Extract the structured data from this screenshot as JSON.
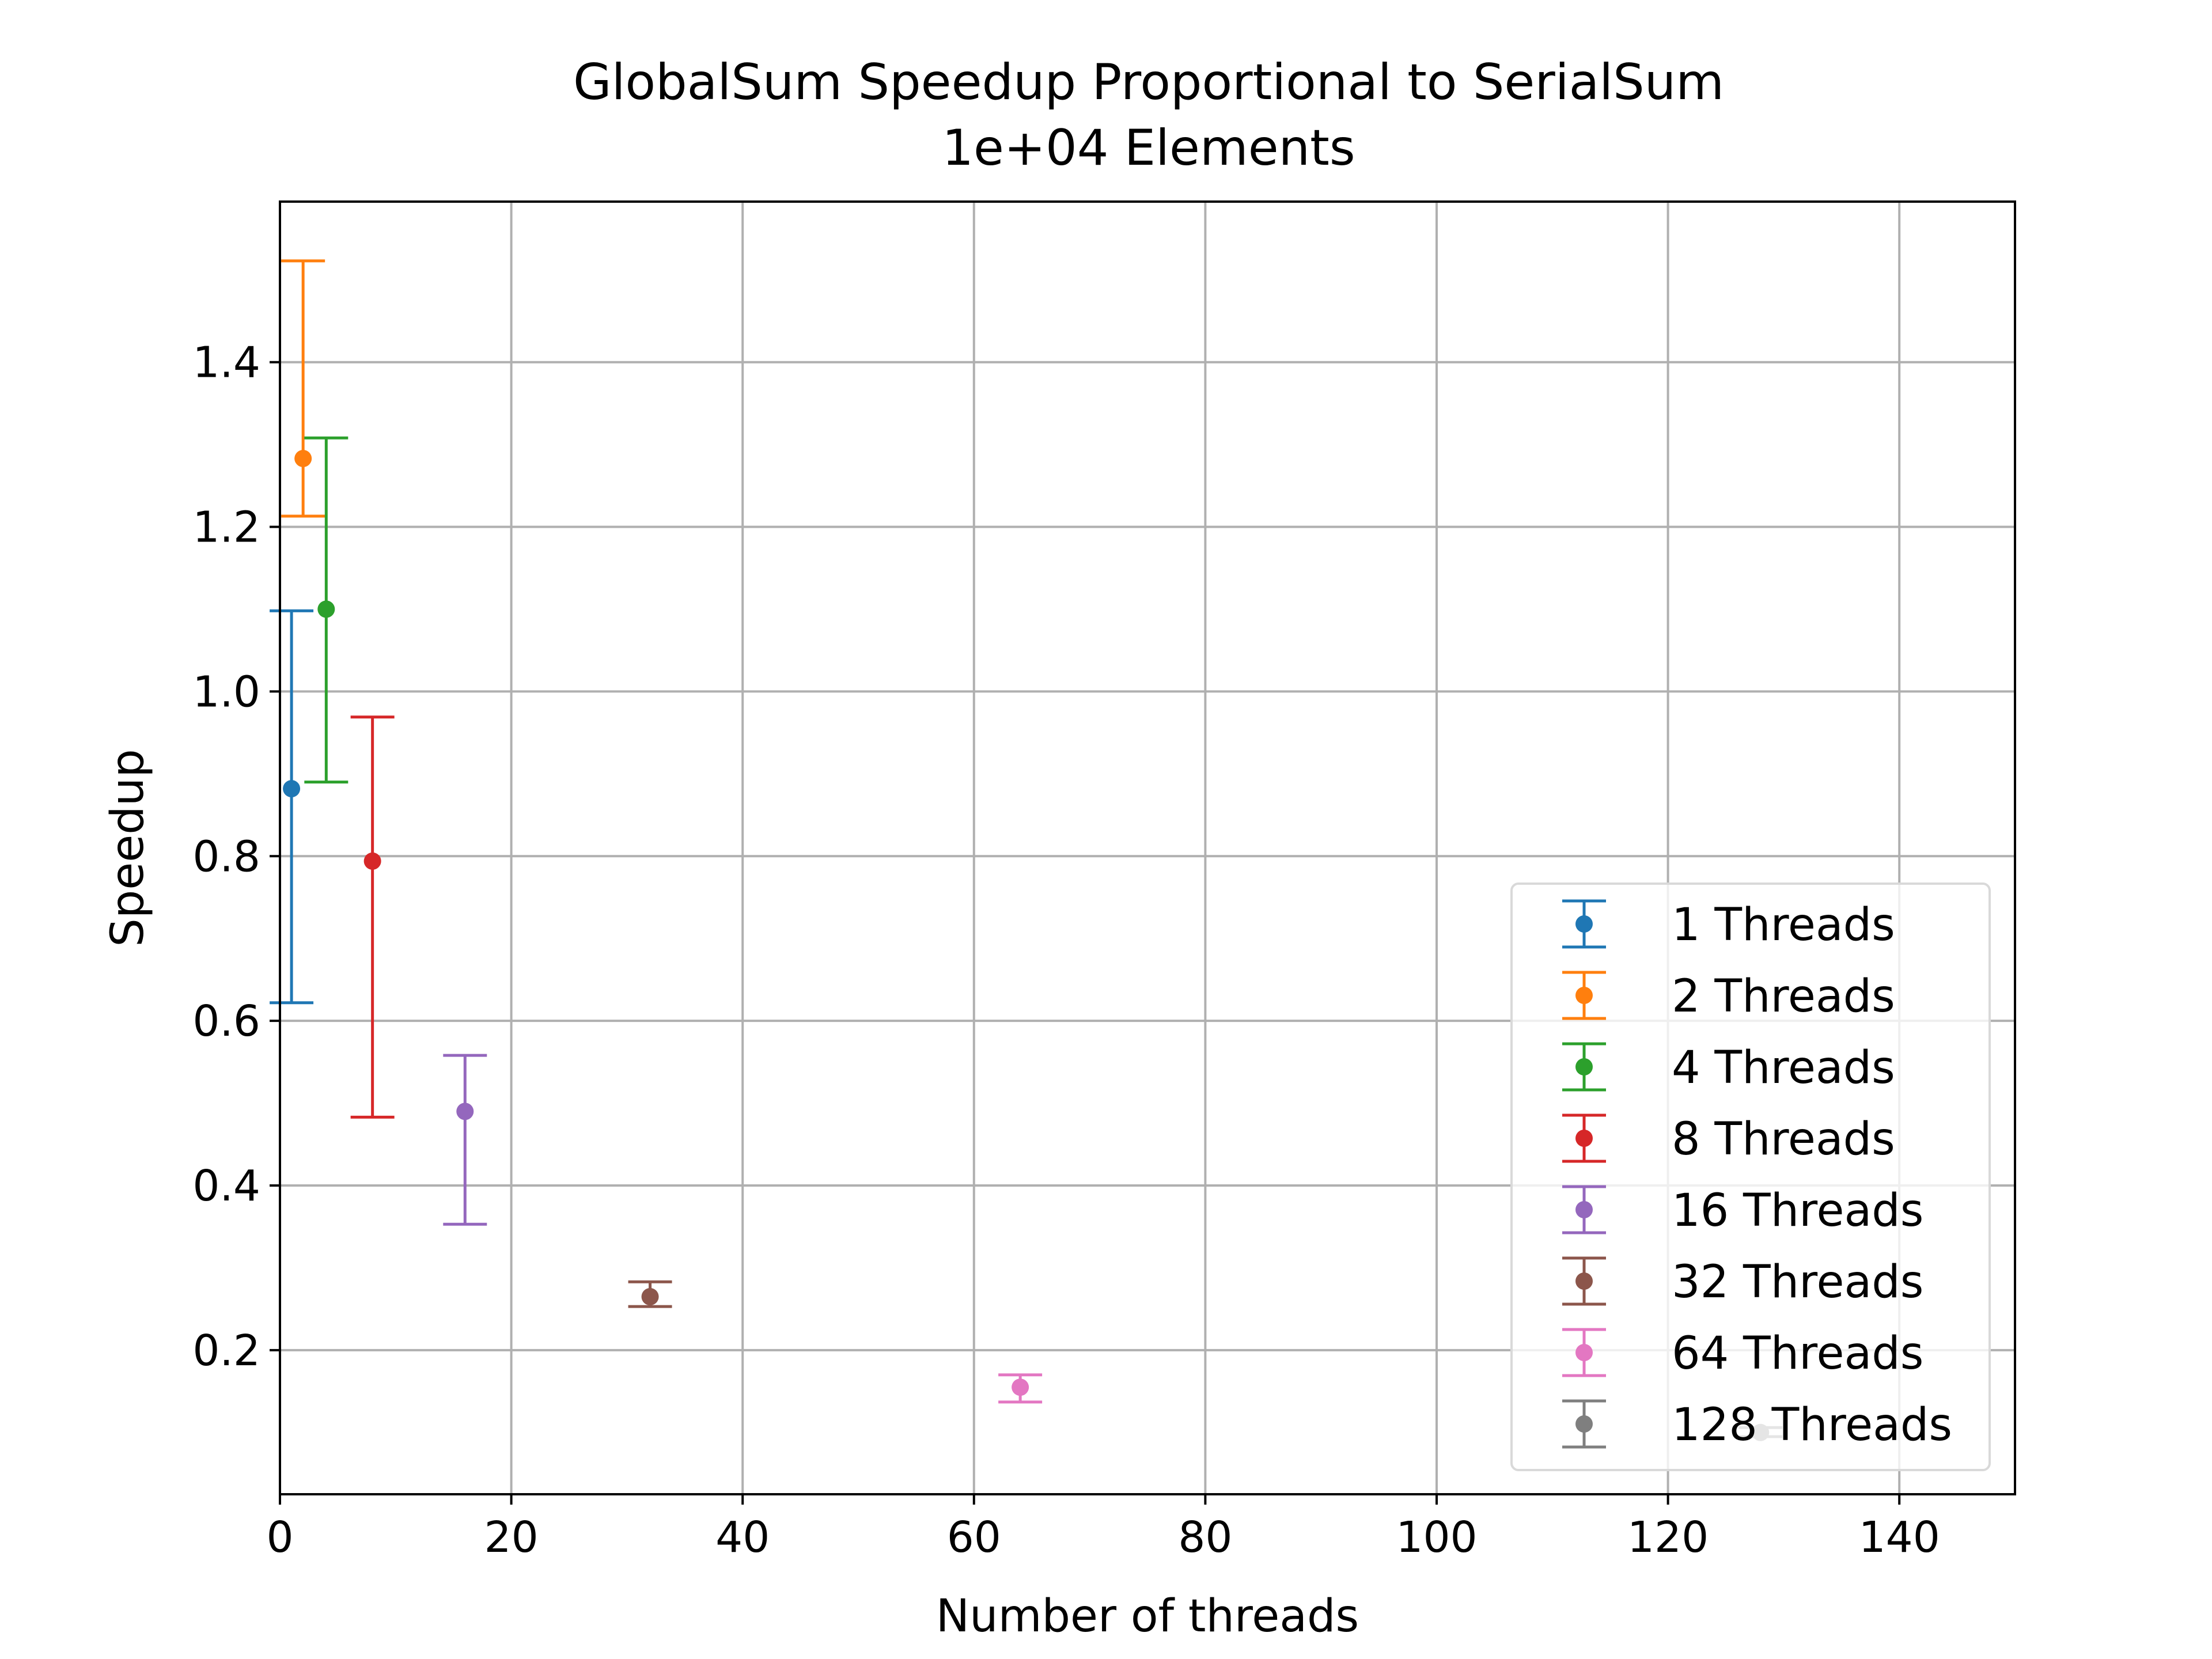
{
  "chart_data": {
    "type": "scatter",
    "title": "GlobalSum Speedup Proportional to SerialSum",
    "subtitle": "1e+04 Elements",
    "xlabel": "Number of threads",
    "ylabel": "Speedup",
    "xlim": [
      0,
      150
    ],
    "ylim": [
      0.025,
      1.595
    ],
    "xticks": [
      0,
      20,
      40,
      60,
      80,
      100,
      120,
      140
    ],
    "xtick_labels": [
      "0",
      "20",
      "40",
      "60",
      "80",
      "100",
      "120",
      "140"
    ],
    "yticks": [
      0.2,
      0.4,
      0.6,
      0.8,
      1.0,
      1.2,
      1.4
    ],
    "ytick_labels": [
      "0.2",
      "0.4",
      "0.6",
      "0.8",
      "1.0",
      "1.2",
      "1.4"
    ],
    "grid": true,
    "legend_position": "bottom-right",
    "error_bars": true,
    "series": [
      {
        "name": "1 Threads",
        "x": 1,
        "y": 0.882,
        "err_low": 0.622,
        "err_high": 1.098,
        "color": "#1f77b4"
      },
      {
        "name": "2 Threads",
        "x": 2,
        "y": 1.283,
        "err_low": 1.213,
        "err_high": 1.523,
        "color": "#ff7f0e"
      },
      {
        "name": "4 Threads",
        "x": 4,
        "y": 1.1,
        "err_low": 0.89,
        "err_high": 1.308,
        "color": "#2ca02c"
      },
      {
        "name": "8 Threads",
        "x": 8,
        "y": 0.794,
        "err_low": 0.483,
        "err_high": 0.969,
        "color": "#d62728"
      },
      {
        "name": "16 Threads",
        "x": 16,
        "y": 0.49,
        "err_low": 0.353,
        "err_high": 0.558,
        "color": "#9467bd"
      },
      {
        "name": "32 Threads",
        "x": 32,
        "y": 0.265,
        "err_low": 0.253,
        "err_high": 0.283,
        "color": "#8c564b"
      },
      {
        "name": "64 Threads",
        "x": 64,
        "y": 0.155,
        "err_low": 0.137,
        "err_high": 0.17,
        "color": "#e377c2"
      },
      {
        "name": "128 Threads",
        "x": 128,
        "y": 0.1,
        "err_low": 0.095,
        "err_high": 0.106,
        "color": "#7f7f7f"
      }
    ]
  }
}
